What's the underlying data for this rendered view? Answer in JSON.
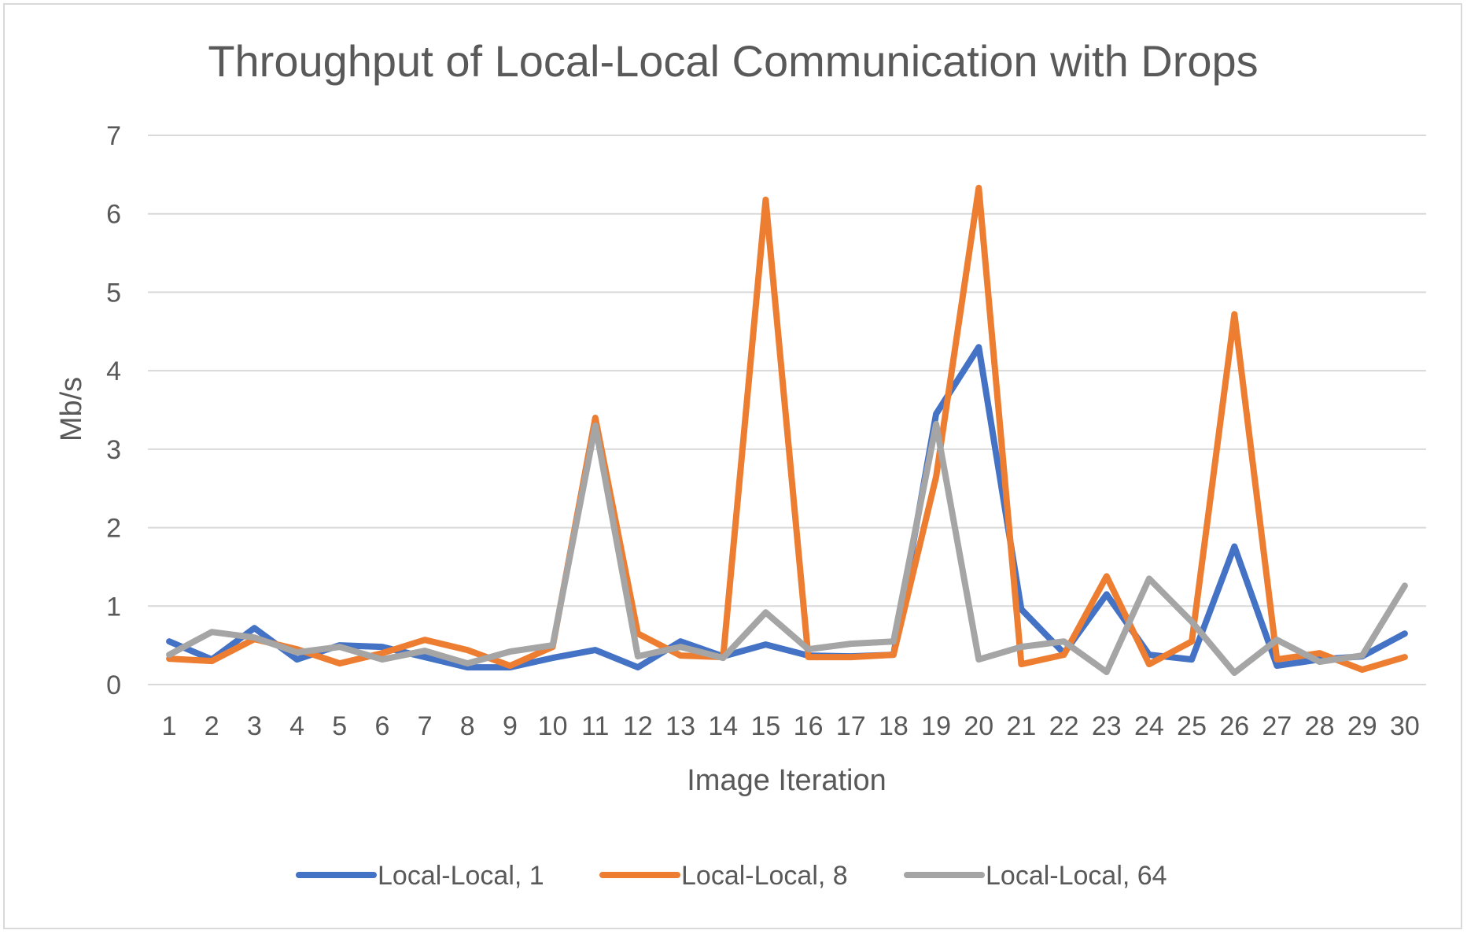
{
  "chart_data": {
    "type": "line",
    "title": "Throughput of Local-Local Communication with Drops",
    "xlabel": "Image Iteration",
    "ylabel": "Mb/s",
    "ylim": [
      0,
      7
    ],
    "yticks": [
      "0",
      "1",
      "2",
      "3",
      "4",
      "5",
      "6",
      "7"
    ],
    "grid": true,
    "legend_position": "bottom",
    "categories": [
      "1",
      "2",
      "3",
      "4",
      "5",
      "6",
      "7",
      "8",
      "9",
      "10",
      "11",
      "12",
      "13",
      "14",
      "15",
      "16",
      "17",
      "18",
      "19",
      "20",
      "21",
      "22",
      "23",
      "24",
      "25",
      "26",
      "27",
      "28",
      "29",
      "30"
    ],
    "series": [
      {
        "name": "Local-Local, 1",
        "color": "#4472c4",
        "values": [
          0.55,
          0.32,
          0.72,
          0.32,
          0.5,
          0.48,
          0.35,
          0.22,
          0.22,
          0.34,
          0.44,
          0.22,
          0.55,
          0.36,
          0.51,
          0.37,
          0.36,
          0.38,
          3.45,
          4.3,
          0.96,
          0.4,
          1.15,
          0.38,
          0.32,
          1.76,
          0.24,
          0.32,
          0.36,
          0.65
        ]
      },
      {
        "name": "Local-Local, 8",
        "color": "#ed7d31",
        "values": [
          0.33,
          0.3,
          0.58,
          0.45,
          0.27,
          0.4,
          0.57,
          0.44,
          0.24,
          0.48,
          3.4,
          0.65,
          0.37,
          0.35,
          6.18,
          0.35,
          0.35,
          0.38,
          2.65,
          6.33,
          0.26,
          0.38,
          1.38,
          0.26,
          0.55,
          4.72,
          0.32,
          0.4,
          0.19,
          0.35
        ]
      },
      {
        "name": "Local-Local, 64",
        "color": "#a5a5a5",
        "values": [
          0.38,
          0.67,
          0.6,
          0.41,
          0.48,
          0.32,
          0.43,
          0.27,
          0.42,
          0.5,
          3.3,
          0.36,
          0.48,
          0.34,
          0.92,
          0.45,
          0.52,
          0.55,
          3.32,
          0.32,
          0.48,
          0.55,
          0.16,
          1.35,
          0.8,
          0.15,
          0.57,
          0.29,
          0.37,
          1.26
        ]
      }
    ]
  }
}
